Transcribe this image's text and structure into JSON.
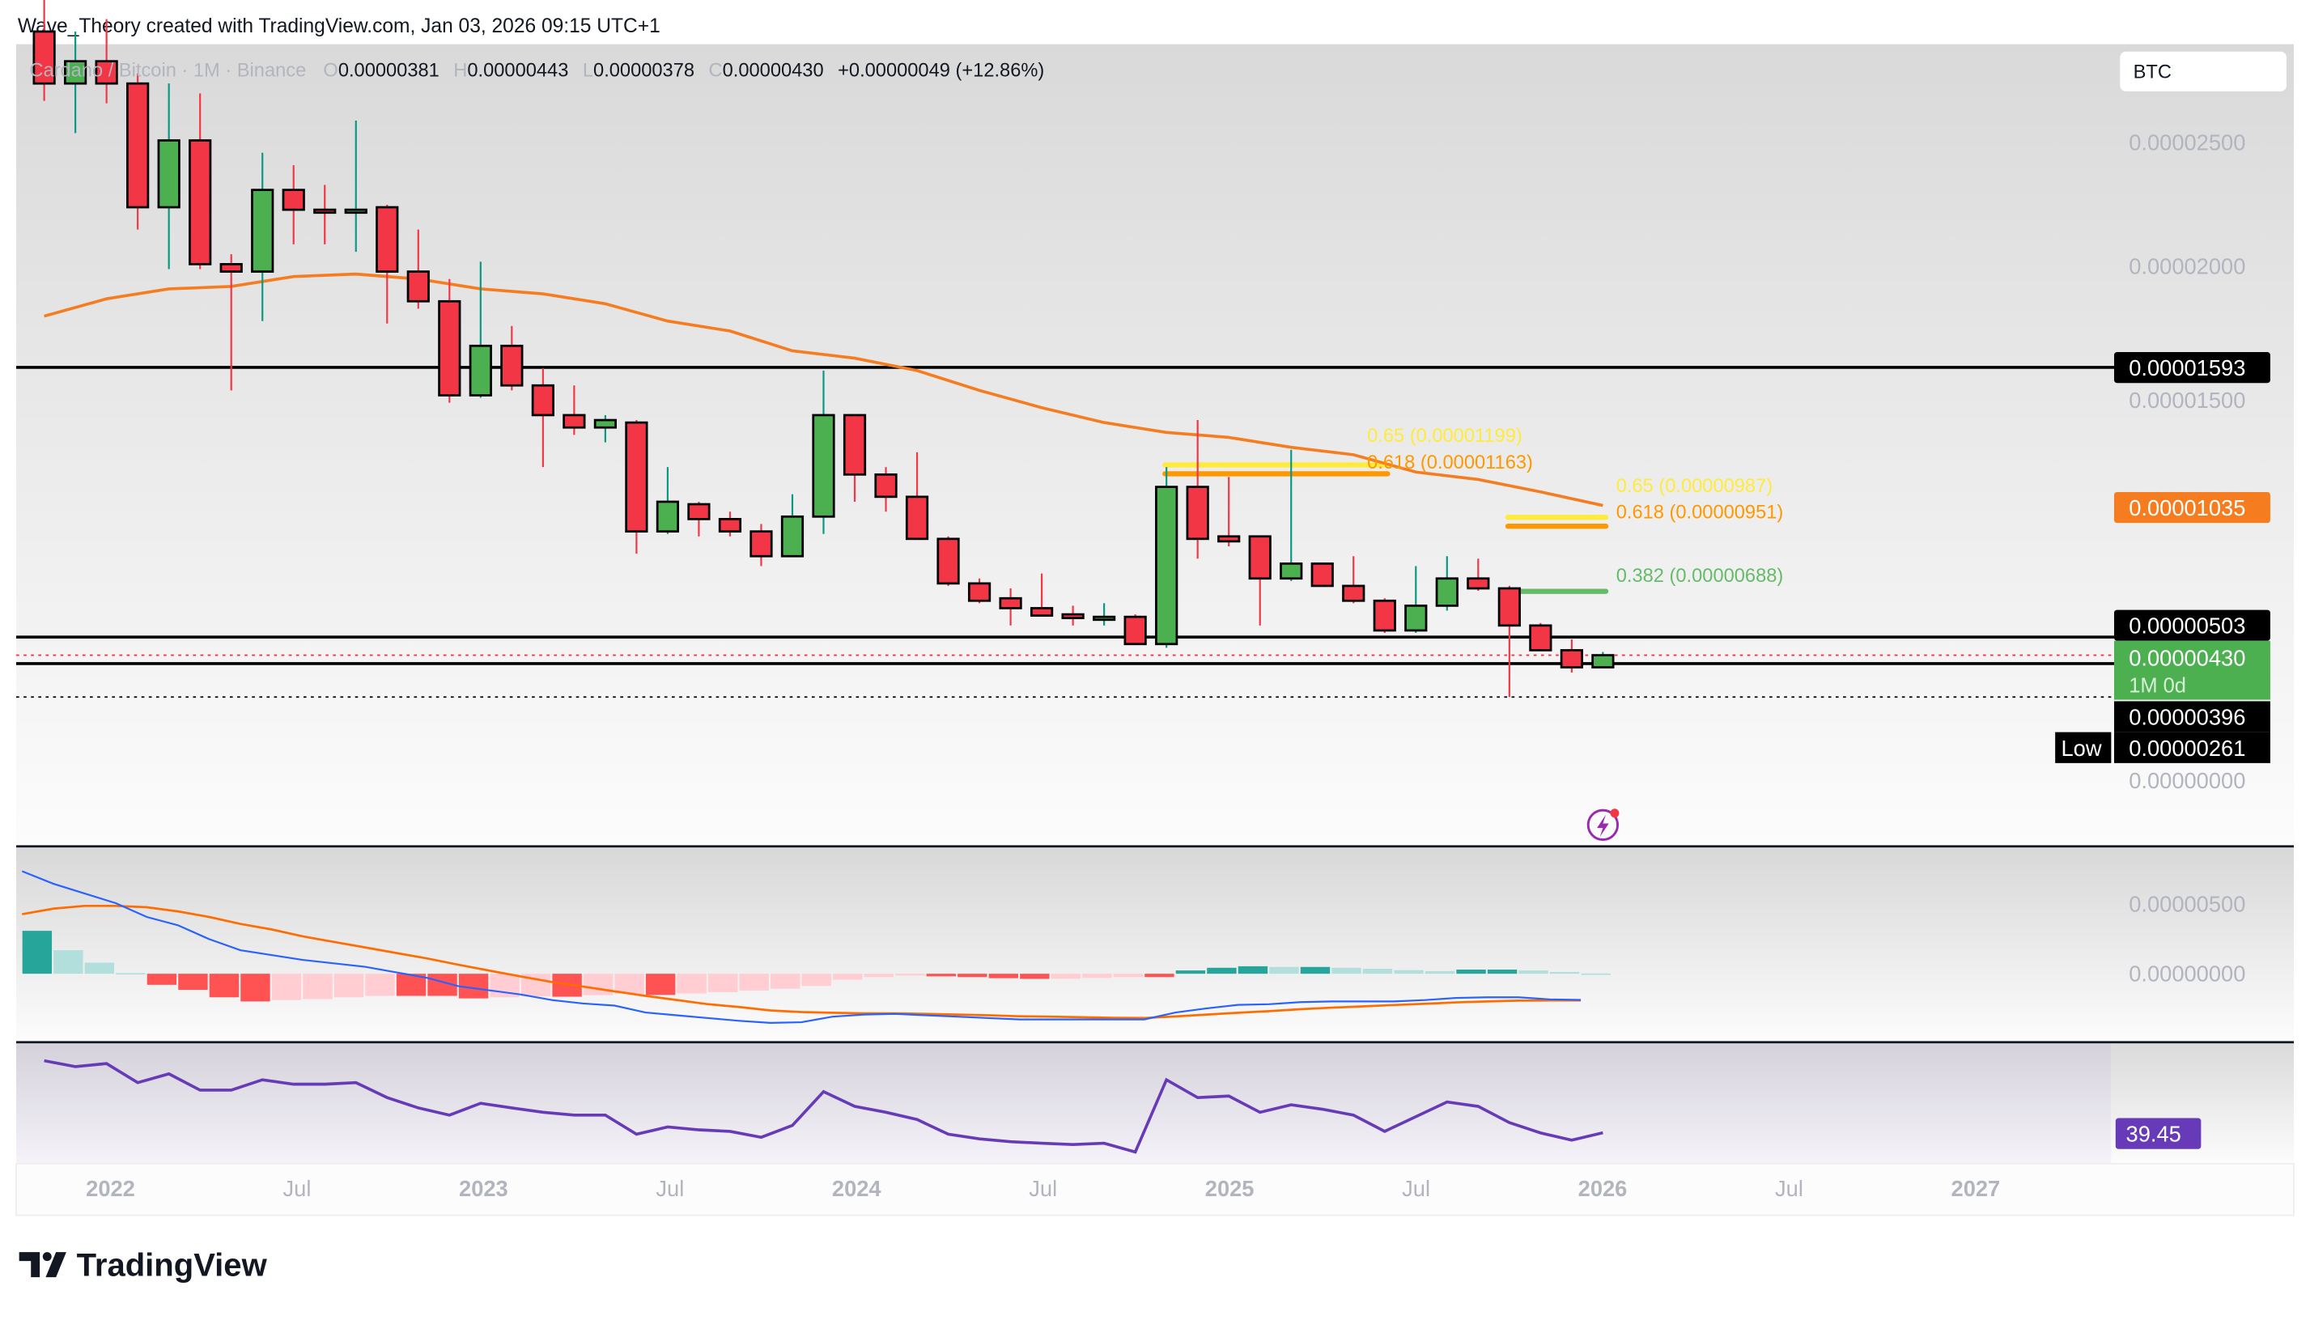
{
  "header": {
    "attribution": "Wave_Theory created with TradingView.com, Jan 03, 2026 09:15 UTC+1"
  },
  "legend": {
    "symbol": "Cardano / Bitcoin · 1M · Binance",
    "o_label": "O",
    "o": "0.00000381",
    "h_label": "H",
    "h": "0.00000443",
    "l_label": "L",
    "l": "0.00000378",
    "c_label": "C",
    "c": "0.00000430",
    "change": "+0.00000049 (+12.86%)"
  },
  "currency_button": "BTC",
  "price_axis": [
    "0.00002500",
    "0.00002000",
    "0.00001500",
    "0.00000000"
  ],
  "tags": {
    "resistance": "0.00001593",
    "ma": "0.00001035",
    "support_upper": "0.00000503",
    "last": "0.00000430",
    "countdown": "1M 0d",
    "support_lower": "0.00000396",
    "low_label": "Low",
    "low": "0.00000261"
  },
  "fib_labels": {
    "a_065": "0.65 (0.00001199)",
    "a_0618": "0.618 (0.00001163)",
    "b_065": "0.65 (0.00000987)",
    "b_0618": "0.618 (0.00000951)",
    "c_0382": "0.382 (0.00000688)"
  },
  "macd_axis": [
    "0.00000500",
    "0.00000000"
  ],
  "rsi_value": "39.45",
  "time_axis": [
    {
      "label": "2022",
      "bold": true
    },
    {
      "label": "Jul",
      "bold": false
    },
    {
      "label": "2023",
      "bold": true
    },
    {
      "label": "Jul",
      "bold": false
    },
    {
      "label": "2024",
      "bold": true
    },
    {
      "label": "Jul",
      "bold": false
    },
    {
      "label": "2025",
      "bold": true
    },
    {
      "label": "Jul",
      "bold": false
    },
    {
      "label": "2026",
      "bold": true
    },
    {
      "label": "Jul",
      "bold": false
    },
    {
      "label": "2027",
      "bold": true
    }
  ],
  "brand": "TradingView",
  "colors": {
    "up": "#4caf50",
    "down": "#f23645",
    "ma": "#f57c1f",
    "macd": "#2962ff",
    "signal": "#ff6d00",
    "rsi": "#673ab7",
    "fib065": "#ffeb3b",
    "fib0618": "#ff9800",
    "fib0382": "#66bb6a"
  },
  "chart_data": {
    "type": "candlestick",
    "interval": "1M",
    "price_range": [
      0,
      3e-05
    ],
    "candles_columns": [
      "month",
      "open",
      "high",
      "low",
      "close"
    ],
    "candles": [
      [
        "2021-11",
        2.95e-05,
        3.1e-05,
        2.67e-05,
        2.74e-05
      ],
      [
        "2021-12",
        2.74e-05,
        2.95e-05,
        2.54e-05,
        2.83e-05
      ],
      [
        "2022-01",
        2.83e-05,
        3e-05,
        2.66e-05,
        2.74e-05
      ],
      [
        "2022-02",
        2.74e-05,
        2.78e-05,
        2.15e-05,
        2.24e-05
      ],
      [
        "2022-03",
        2.24e-05,
        2.74e-05,
        1.99e-05,
        2.51e-05
      ],
      [
        "2022-04",
        2.51e-05,
        2.7e-05,
        1.99e-05,
        2.01e-05
      ],
      [
        "2022-05",
        2.01e-05,
        2.05e-05,
        1.5e-05,
        1.98e-05
      ],
      [
        "2022-06",
        1.98e-05,
        2.46e-05,
        1.78e-05,
        2.31e-05
      ],
      [
        "2022-07",
        2.31e-05,
        2.41e-05,
        2.09e-05,
        2.23e-05
      ],
      [
        "2022-08",
        2.23e-05,
        2.33e-05,
        2.09e-05,
        2.22e-05
      ],
      [
        "2022-09",
        2.22e-05,
        2.59e-05,
        2.06e-05,
        2.23e-05
      ],
      [
        "2022-10",
        2.24e-05,
        2.25e-05,
        1.77e-05,
        1.98e-05
      ],
      [
        "2022-11",
        1.98e-05,
        2.15e-05,
        1.83e-05,
        1.86e-05
      ],
      [
        "2022-12",
        1.86e-05,
        1.95e-05,
        1.45e-05,
        1.48e-05
      ],
      [
        "2023-01",
        1.48e-05,
        2.02e-05,
        1.47e-05,
        1.68e-05
      ],
      [
        "2023-02",
        1.68e-05,
        1.76e-05,
        1.5e-05,
        1.52e-05
      ],
      [
        "2023-03",
        1.52e-05,
        1.59e-05,
        1.19e-05,
        1.4e-05
      ],
      [
        "2023-04",
        1.4e-05,
        1.52e-05,
        1.32e-05,
        1.35e-05
      ],
      [
        "2023-05",
        1.35e-05,
        1.4e-05,
        1.29e-05,
        1.38e-05
      ],
      [
        "2023-06",
        1.37e-05,
        1.38e-05,
        8.4e-06,
        9.3e-06
      ],
      [
        "2023-07",
        9.3e-06,
        1.19e-05,
        9.2e-06,
        1.05e-05
      ],
      [
        "2023-08",
        1.04e-05,
        1.05e-05,
        9.1e-06,
        9.8e-06
      ],
      [
        "2023-09",
        9.8e-06,
        1.01e-05,
        9.1e-06,
        9.3e-06
      ],
      [
        "2023-10",
        9.3e-06,
        9.6e-06,
        7.9e-06,
        8.3e-06
      ],
      [
        "2023-11",
        8.3e-06,
        1.08e-05,
        8.3e-06,
        9.9e-06
      ],
      [
        "2023-12",
        9.9e-06,
        1.58e-05,
        9.2e-06,
        1.4e-05
      ],
      [
        "2024-01",
        1.4e-05,
        1.4e-05,
        1.05e-05,
        1.16e-05
      ],
      [
        "2024-02",
        1.16e-05,
        1.19e-05,
        1.01e-05,
        1.07e-05
      ],
      [
        "2024-03",
        1.07e-05,
        1.25e-05,
        9e-06,
        9e-06
      ],
      [
        "2024-04",
        9e-06,
        9.1e-06,
        7.1e-06,
        7.2e-06
      ],
      [
        "2024-05",
        7.2e-06,
        7.4e-06,
        6.4e-06,
        6.5e-06
      ],
      [
        "2024-06",
        6.6e-06,
        7e-06,
        5.5e-06,
        6.2e-06
      ],
      [
        "2024-07",
        6.2e-06,
        7.6e-06,
        5.9e-06,
        5.9e-06
      ],
      [
        "2024-08",
        5.95e-06,
        6.3e-06,
        5.5e-06,
        5.8e-06
      ],
      [
        "2024-09",
        5.8e-06,
        6.4e-06,
        5.5e-06,
        5.85e-06
      ],
      [
        "2024-10",
        5.85e-06,
        5.95e-06,
        4.75e-06,
        4.75e-06
      ],
      [
        "2024-11",
        4.75e-06,
        1.19e-05,
        4.6e-06,
        1.11e-05
      ],
      [
        "2024-12",
        1.11e-05,
        1.38e-05,
        8.2e-06,
        9e-06
      ],
      [
        "2025-01",
        9.1e-06,
        1.15e-05,
        8.7e-06,
        8.9e-06
      ],
      [
        "2025-02",
        9.1e-06,
        9.1e-06,
        5.5e-06,
        7.4e-06
      ],
      [
        "2025-03",
        7.4e-06,
        1.26e-05,
        7.3e-06,
        8e-06
      ],
      [
        "2025-04",
        8e-06,
        8e-06,
        7.1e-06,
        7.1e-06
      ],
      [
        "2025-05",
        7.1e-06,
        8.3e-06,
        6.4e-06,
        6.5e-06
      ],
      [
        "2025-06",
        6.5e-06,
        6.6e-06,
        5.2e-06,
        5.3e-06
      ],
      [
        "2025-07",
        5.3e-06,
        7.9e-06,
        5.2e-06,
        6.3e-06
      ],
      [
        "2025-08",
        6.3e-06,
        8.3e-06,
        6.1e-06,
        7.4e-06
      ],
      [
        "2025-09",
        7.4e-06,
        8.2e-06,
        6.9e-06,
        7e-06
      ],
      [
        "2025-10",
        7e-06,
        7.1e-06,
        2.61e-06,
        5.5e-06
      ],
      [
        "2025-11",
        5.5e-06,
        5.6e-06,
        4.5e-06,
        4.5e-06
      ],
      [
        "2025-12",
        4.5e-06,
        4.94e-06,
        3.6e-06,
        3.81e-06
      ],
      [
        "2026-01",
        3.81e-06,
        4.43e-06,
        3.78e-06,
        4.3e-06
      ]
    ],
    "moving_average": [
      [
        "2021-11",
        1.8e-05
      ],
      [
        "2022-01",
        1.87e-05
      ],
      [
        "2022-03",
        1.91e-05
      ],
      [
        "2022-05",
        1.92e-05
      ],
      [
        "2022-07",
        1.96e-05
      ],
      [
        "2022-09",
        1.97e-05
      ],
      [
        "2022-11",
        1.95e-05
      ],
      [
        "2023-01",
        1.91e-05
      ],
      [
        "2023-03",
        1.89e-05
      ],
      [
        "2023-05",
        1.85e-05
      ],
      [
        "2023-07",
        1.78e-05
      ],
      [
        "2023-09",
        1.74e-05
      ],
      [
        "2023-11",
        1.66e-05
      ],
      [
        "2024-01",
        1.63e-05
      ],
      [
        "2024-03",
        1.58e-05
      ],
      [
        "2024-05",
        1.5e-05
      ],
      [
        "2024-07",
        1.43e-05
      ],
      [
        "2024-09",
        1.37e-05
      ],
      [
        "2024-11",
        1.33e-05
      ],
      [
        "2025-01",
        1.31e-05
      ],
      [
        "2025-03",
        1.27e-05
      ],
      [
        "2025-05",
        1.24e-05
      ],
      [
        "2025-07",
        1.17e-05
      ],
      [
        "2025-09",
        1.14e-05
      ],
      [
        "2025-11",
        1.09e-05
      ],
      [
        "2026-01",
        1.035e-05
      ]
    ],
    "horizontal_levels": [
      {
        "value": 1.593e-05,
        "style": "solid"
      },
      {
        "value": 5.03e-06,
        "style": "solid"
      },
      {
        "value": 3.96e-06,
        "style": "solid"
      },
      {
        "value": 2.61e-06,
        "style": "dotted"
      }
    ],
    "last_price_line": 4.3e-06,
    "fib_levels": [
      {
        "ratio": 0.65,
        "value": 1.199e-05,
        "from": "2024-11",
        "to": "2025-06",
        "color": "#ffeb3b"
      },
      {
        "ratio": 0.618,
        "value": 1.163e-05,
        "from": "2024-11",
        "to": "2025-06",
        "color": "#ff9800"
      },
      {
        "ratio": 0.65,
        "value": 9.87e-06,
        "from": "2025-10",
        "to": "2026-01",
        "color": "#ffeb3b"
      },
      {
        "ratio": 0.618,
        "value": 9.51e-06,
        "from": "2025-10",
        "to": "2026-01",
        "color": "#ff9800"
      },
      {
        "ratio": 0.382,
        "value": 6.88e-06,
        "from": "2025-10",
        "to": "2026-01",
        "color": "#66bb6a"
      }
    ],
    "macd": {
      "range": [
        -5e-06,
        9e-06
      ],
      "macd": [
        7.4e-06,
        6.5e-06,
        5.8e-06,
        5.1e-06,
        4.1e-06,
        3.5e-06,
        2.5e-06,
        1.7e-06,
        1.35e-06,
        1e-06,
        7.5e-07,
        5e-07,
        1e-07,
        -3e-07,
        -9e-07,
        -1.2e-06,
        -1.5e-06,
        -1.9e-06,
        -2.15e-06,
        -2.3e-06,
        -2.8e-06,
        -3e-06,
        -3.2e-06,
        -3.4e-06,
        -3.55e-06,
        -3.5e-06,
        -3.1e-06,
        -2.95e-06,
        -2.9e-06,
        -3e-06,
        -3.1e-06,
        -3.2e-06,
        -3.3e-06,
        -3.3e-06,
        -3.3e-06,
        -3.3e-06,
        -3.3e-06,
        -2.8e-06,
        -2.5e-06,
        -2.25e-06,
        -2.2e-06,
        -2.05e-06,
        -2e-06,
        -2e-06,
        -2e-06,
        -1.9e-06,
        -1.75e-06,
        -1.7e-06,
        -1.7e-06,
        -1.85e-06,
        -1.89e-06
      ],
      "signal": [
        4.3e-06,
        4.7e-06,
        4.9e-06,
        4.9e-06,
        4.8e-06,
        4.5e-06,
        4.1e-06,
        3.6e-06,
        3.2e-06,
        2.7e-06,
        2.3e-06,
        1.9e-06,
        1.5e-06,
        1.1e-06,
        6.5e-07,
        2.2e-07,
        -2e-07,
        -6e-07,
        -9.3e-07,
        -1.27e-06,
        -1.6e-06,
        -1.9e-06,
        -2.2e-06,
        -2.4e-06,
        -2.65e-06,
        -2.77e-06,
        -2.82e-06,
        -2.86e-06,
        -2.86e-06,
        -2.9e-06,
        -2.95e-06,
        -3e-06,
        -3.07e-06,
        -3.1e-06,
        -3.14e-06,
        -3.18e-06,
        -3.2e-06,
        -3.08e-06,
        -2.95e-06,
        -2.82e-06,
        -2.7e-06,
        -2.56e-06,
        -2.45e-06,
        -2.36e-06,
        -2.26e-06,
        -2.17e-06,
        -2.07e-06,
        -2e-06,
        -1.94e-06,
        -1.93e-06,
        -1.93e-06
      ],
      "histogram": [
        3.1e-06,
        1.7e-06,
        8e-07,
        5e-08,
        -8e-07,
        -1.16e-06,
        -1.7e-06,
        -2e-06,
        -1.9e-06,
        -1.83e-06,
        -1.7e-06,
        -1.6e-06,
        -1.6e-06,
        -1.6e-06,
        -1.78e-06,
        -1.7e-06,
        -1.64e-06,
        -1.66e-06,
        -1.55e-06,
        -1.44e-06,
        -1.53e-06,
        -1.42e-06,
        -1.33e-06,
        -1.21e-06,
        -1.08e-06,
        -8.8e-07,
        -4.3e-07,
        -2.4e-07,
        -1.3e-07,
        -1.9e-07,
        -2.4e-07,
        -3.2e-07,
        -3.7e-07,
        -3.6e-07,
        -3e-07,
        -2.4e-07,
        -2.4e-07,
        2.4e-07,
        4.3e-07,
        5.4e-07,
        4.9e-07,
        4.9e-07,
        4.3e-07,
        3.6e-07,
        2.6e-07,
        1.9e-07,
        3e-07,
        3e-07,
        2.4e-07,
        1.3e-07,
        2e-08
      ]
    },
    "rsi": [
      67.4,
      65.1,
      66.3,
      58.9,
      62.3,
      56,
      56,
      60,
      58.3,
      58.3,
      58.9,
      53.1,
      49.1,
      46.3,
      50.9,
      49.1,
      47.4,
      46.3,
      46.3,
      38.9,
      41.7,
      40.6,
      40,
      37.7,
      42.3,
      55.4,
      49.7,
      47.4,
      44.6,
      38.9,
      37.1,
      36,
      35.4,
      34.9,
      35.4,
      32,
      60,
      53.1,
      53.7,
      47.4,
      50.3,
      48.6,
      46.3,
      40,
      45.7,
      51.4,
      49.7,
      43.4,
      39.4,
      36.6,
      39.45
    ]
  }
}
